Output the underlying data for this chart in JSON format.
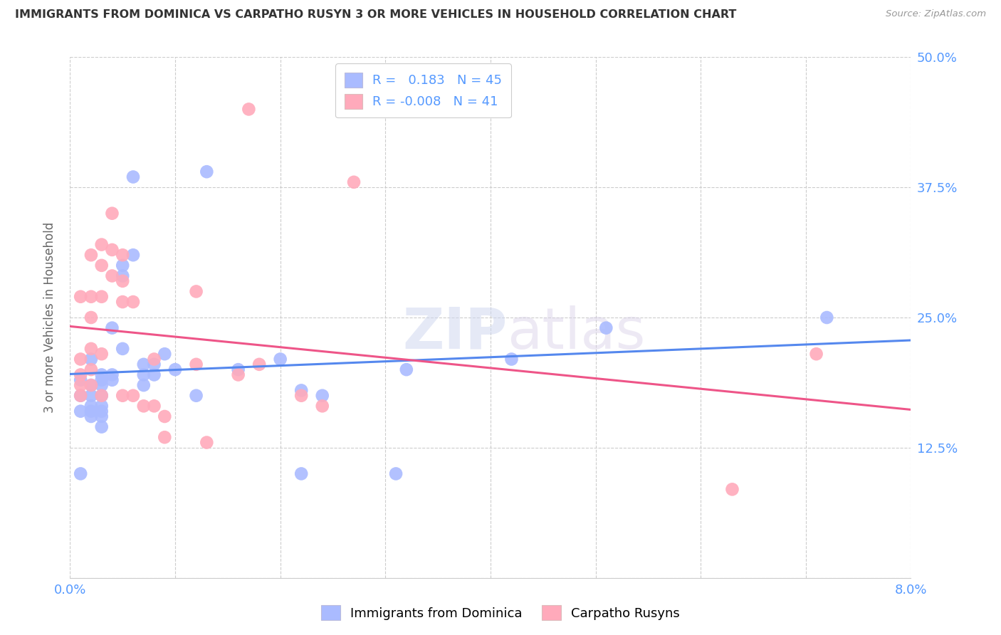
{
  "title": "IMMIGRANTS FROM DOMINICA VS CARPATHO RUSYN 3 OR MORE VEHICLES IN HOUSEHOLD CORRELATION CHART",
  "source": "Source: ZipAtlas.com",
  "ylabel": "3 or more Vehicles in Household",
  "x_min": 0.0,
  "x_max": 0.08,
  "y_min": 0.0,
  "y_max": 0.5,
  "x_ticks": [
    0.0,
    0.01,
    0.02,
    0.03,
    0.04,
    0.05,
    0.06,
    0.07,
    0.08
  ],
  "x_tick_labels": [
    "0.0%",
    "",
    "",
    "",
    "",
    "",
    "",
    "",
    "8.0%"
  ],
  "y_ticks": [
    0.0,
    0.125,
    0.25,
    0.375,
    0.5
  ],
  "y_tick_labels_right": [
    "",
    "12.5%",
    "25.0%",
    "37.5%",
    "50.0%"
  ],
  "dominica_R": 0.183,
  "dominica_N": 45,
  "carpatho_R": -0.008,
  "carpatho_N": 41,
  "dominica_color": "#aabbff",
  "carpatho_color": "#ffaabb",
  "dominica_line_color": "#5588ee",
  "carpatho_line_color": "#ee5588",
  "legend_label_1": "Immigrants from Dominica",
  "legend_label_2": "Carpatho Rusyns",
  "watermark_zip": "ZIP",
  "watermark_atlas": "atlas",
  "blue_scatter_x": [
    0.001,
    0.001,
    0.001,
    0.001,
    0.002,
    0.002,
    0.002,
    0.002,
    0.002,
    0.002,
    0.003,
    0.003,
    0.003,
    0.003,
    0.003,
    0.003,
    0.003,
    0.003,
    0.004,
    0.004,
    0.004,
    0.005,
    0.005,
    0.005,
    0.006,
    0.006,
    0.007,
    0.007,
    0.007,
    0.008,
    0.008,
    0.009,
    0.01,
    0.012,
    0.013,
    0.016,
    0.02,
    0.022,
    0.022,
    0.024,
    0.031,
    0.032,
    0.042,
    0.051,
    0.072
  ],
  "blue_scatter_y": [
    0.1,
    0.175,
    0.19,
    0.16,
    0.21,
    0.185,
    0.175,
    0.165,
    0.16,
    0.155,
    0.195,
    0.19,
    0.185,
    0.175,
    0.165,
    0.16,
    0.155,
    0.145,
    0.24,
    0.195,
    0.19,
    0.3,
    0.29,
    0.22,
    0.31,
    0.385,
    0.205,
    0.195,
    0.185,
    0.205,
    0.195,
    0.215,
    0.2,
    0.175,
    0.39,
    0.2,
    0.21,
    0.18,
    0.1,
    0.175,
    0.1,
    0.2,
    0.21,
    0.24,
    0.25
  ],
  "pink_scatter_x": [
    0.001,
    0.001,
    0.001,
    0.001,
    0.001,
    0.002,
    0.002,
    0.002,
    0.002,
    0.002,
    0.002,
    0.003,
    0.003,
    0.003,
    0.003,
    0.003,
    0.004,
    0.004,
    0.004,
    0.005,
    0.005,
    0.005,
    0.005,
    0.006,
    0.006,
    0.007,
    0.008,
    0.008,
    0.009,
    0.009,
    0.012,
    0.012,
    0.013,
    0.016,
    0.017,
    0.018,
    0.022,
    0.024,
    0.027,
    0.063,
    0.071
  ],
  "pink_scatter_y": [
    0.21,
    0.27,
    0.195,
    0.185,
    0.175,
    0.31,
    0.27,
    0.25,
    0.22,
    0.2,
    0.185,
    0.32,
    0.3,
    0.27,
    0.215,
    0.175,
    0.35,
    0.315,
    0.29,
    0.31,
    0.285,
    0.265,
    0.175,
    0.265,
    0.175,
    0.165,
    0.21,
    0.165,
    0.155,
    0.135,
    0.275,
    0.205,
    0.13,
    0.195,
    0.45,
    0.205,
    0.175,
    0.165,
    0.38,
    0.085,
    0.215
  ],
  "grid_color": "#cccccc",
  "tick_label_color": "#5599ff",
  "ylabel_color": "#666666",
  "title_color": "#333333",
  "source_color": "#999999"
}
